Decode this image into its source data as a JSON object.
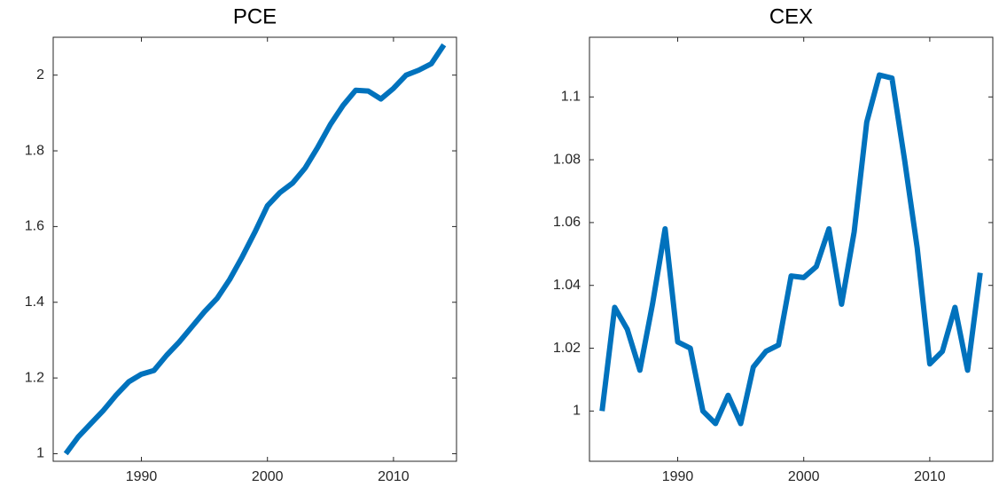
{
  "chart_data": [
    {
      "type": "line",
      "title": "PCE",
      "x": [
        1984,
        1985,
        1986,
        1987,
        1988,
        1989,
        1990,
        1991,
        1992,
        1993,
        1994,
        1995,
        1996,
        1997,
        1998,
        1999,
        2000,
        2001,
        2002,
        2003,
        2004,
        2005,
        2006,
        2007,
        2008,
        2009,
        2010,
        2011,
        2012,
        2013,
        2014
      ],
      "series": [
        {
          "color": "#0072bd",
          "values": [
            1.0,
            1.045,
            1.08,
            1.115,
            1.155,
            1.19,
            1.21,
            1.22,
            1.26,
            1.295,
            1.335,
            1.375,
            1.41,
            1.46,
            1.52,
            1.585,
            1.655,
            1.69,
            1.715,
            1.755,
            1.81,
            1.87,
            1.92,
            1.96,
            1.958,
            1.937,
            1.965,
            2.0,
            2.013,
            2.03,
            2.08
          ]
        }
      ],
      "xlim": [
        1983,
        2015
      ],
      "xticks": [
        1990,
        2000,
        2010
      ],
      "ylim": [
        0.98,
        2.1
      ],
      "yticks": [
        1,
        1.2,
        1.4,
        1.6,
        1.8,
        2
      ]
    },
    {
      "type": "line",
      "title": "CEX",
      "x": [
        1984,
        1985,
        1986,
        1987,
        1988,
        1989,
        1990,
        1991,
        1992,
        1993,
        1994,
        1995,
        1996,
        1997,
        1998,
        1999,
        2000,
        2001,
        2002,
        2003,
        2004,
        2005,
        2006,
        2007,
        2008,
        2009,
        2010,
        2011,
        2012,
        2013,
        2014
      ],
      "series": [
        {
          "color": "#0072bd",
          "values": [
            1.0,
            1.033,
            1.026,
            1.013,
            1.034,
            1.058,
            1.022,
            1.02,
            1.0,
            0.996,
            1.005,
            0.996,
            1.014,
            1.019,
            1.021,
            1.043,
            1.0425,
            1.046,
            1.058,
            1.034,
            1.057,
            1.092,
            1.107,
            1.106,
            1.08,
            1.052,
            1.015,
            1.019,
            1.033,
            1.013,
            1.044
          ]
        }
      ],
      "xlim": [
        1983,
        2015
      ],
      "xticks": [
        1990,
        2000,
        2010
      ],
      "ylim": [
        0.984,
        1.119
      ],
      "yticks": [
        1,
        1.02,
        1.04,
        1.06,
        1.08,
        1.1
      ]
    }
  ]
}
